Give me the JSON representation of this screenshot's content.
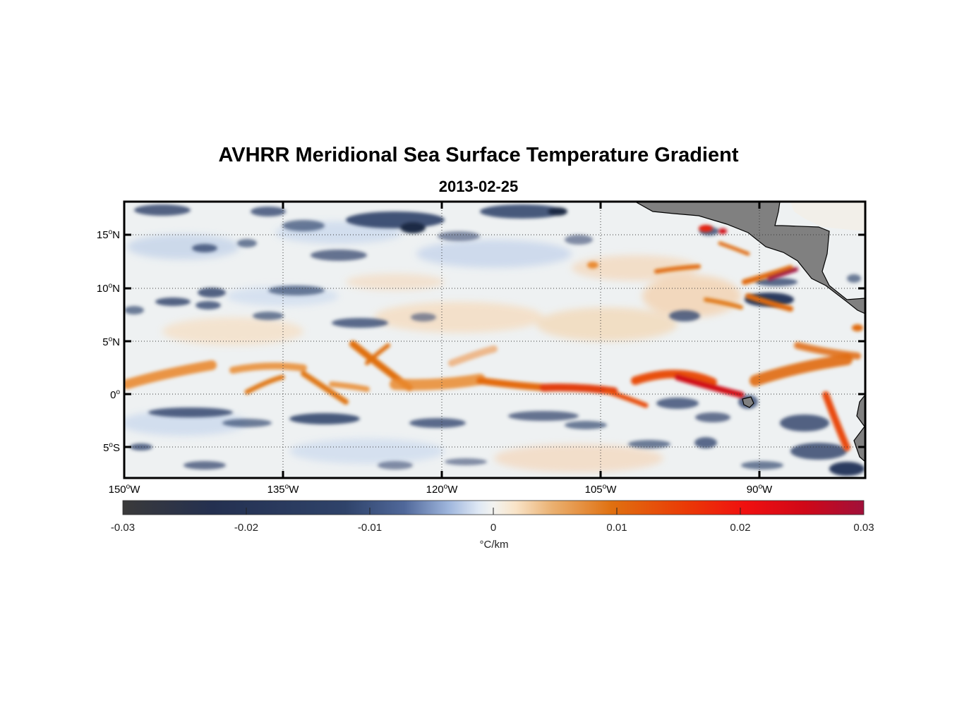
{
  "title": "AVHRR Meridional Sea Surface Temperature Gradient",
  "subtitle": "2013-02-25",
  "map": {
    "lat_labels": [
      {
        "value": 15,
        "text_pre": "15",
        "sup": "o",
        "text_post": "N"
      },
      {
        "value": 10,
        "text_pre": "10",
        "sup": "o",
        "text_post": "N"
      },
      {
        "value": 5,
        "text_pre": "5",
        "sup": "o",
        "text_post": "N"
      },
      {
        "value": 0,
        "text_pre": "0",
        "sup": "o",
        "text_post": ""
      },
      {
        "value": -5,
        "text_pre": "5",
        "sup": "o",
        "text_post": "S"
      }
    ],
    "lon_labels": [
      {
        "value": -150,
        "text_pre": "150",
        "sup": "o",
        "text_post": "W"
      },
      {
        "value": -135,
        "text_pre": "135",
        "sup": "o",
        "text_post": "W"
      },
      {
        "value": -120,
        "text_pre": "120",
        "sup": "o",
        "text_post": "W"
      },
      {
        "value": -105,
        "text_pre": "105",
        "sup": "o",
        "text_post": "W"
      },
      {
        "value": -90,
        "text_pre": "90",
        "sup": "o",
        "text_post": "W"
      }
    ],
    "lon_range": [
      -150,
      -80
    ],
    "lat_range": [
      -8,
      18
    ],
    "land_color": "#808080"
  },
  "colorbar": {
    "ticks": [
      "-0.03",
      "-0.02",
      "-0.01",
      "0",
      "0.01",
      "0.02",
      "0.03"
    ],
    "unit": "°C/km",
    "range": [
      -0.03,
      0.03
    ],
    "colors": [
      "#3a3a3a",
      "#1f2b4a",
      "#34486e",
      "#5d75a0",
      "#c8d8f0",
      "#f2f2f0",
      "#f8e2c6",
      "#e8a050",
      "#e06a08",
      "#f01808",
      "#d00818",
      "#a0103a"
    ]
  }
}
